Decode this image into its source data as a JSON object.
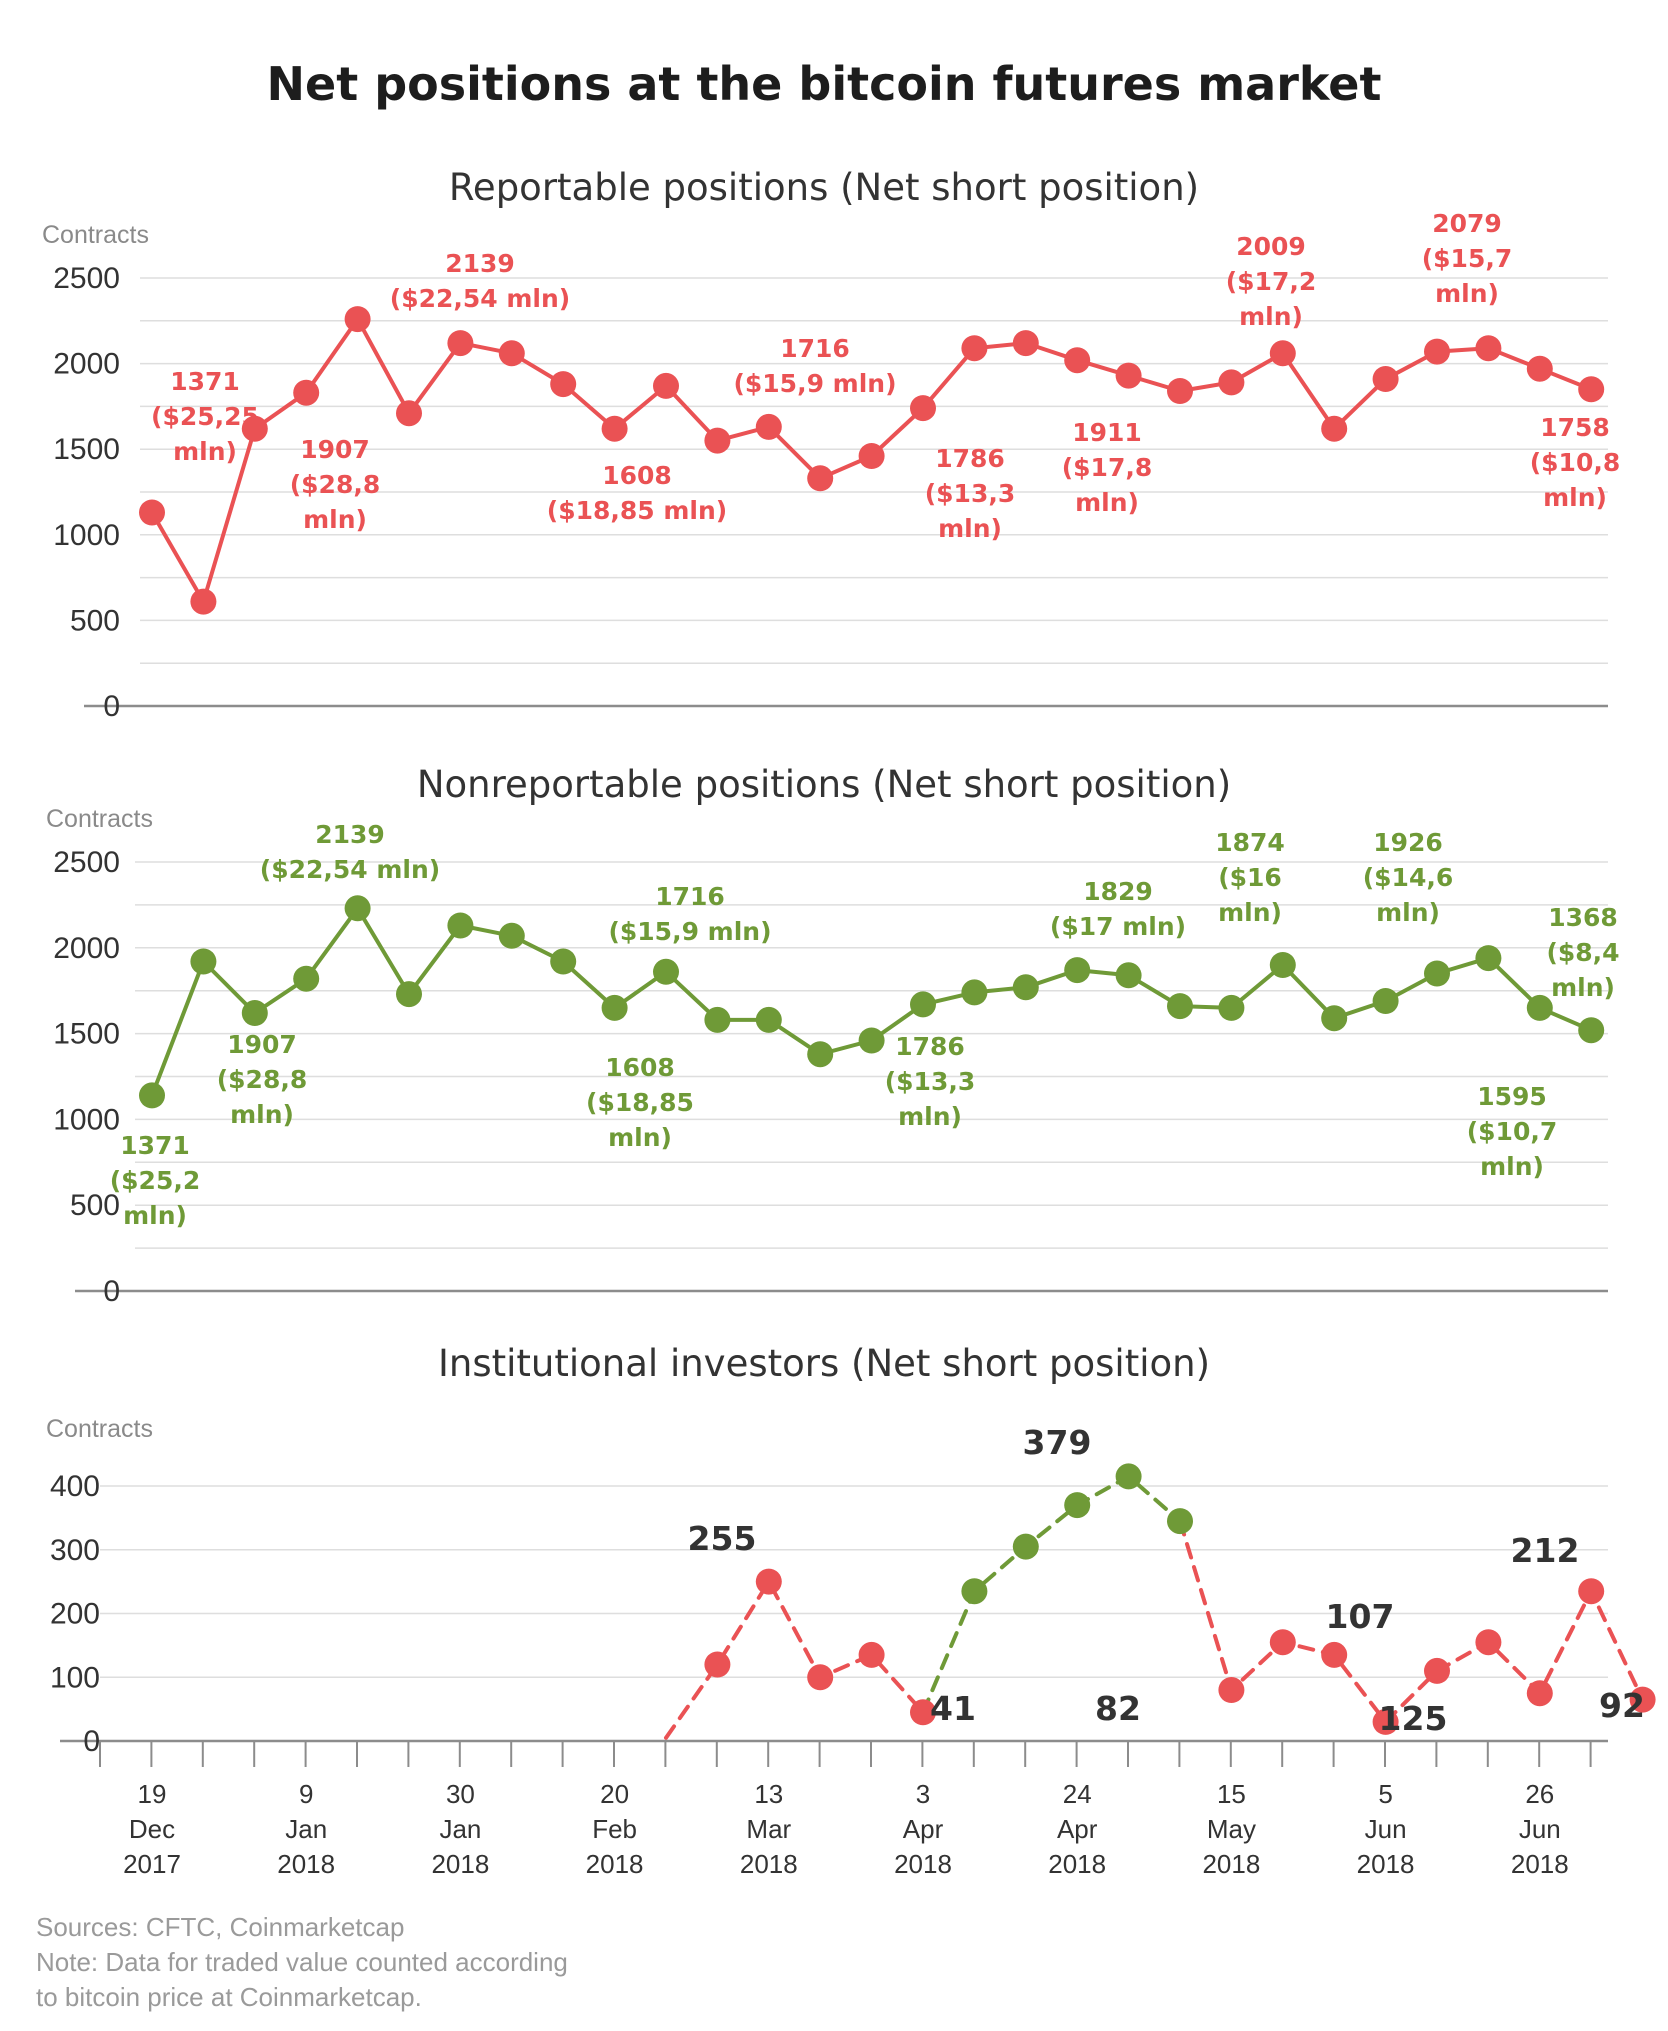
{
  "title": "Net positions at the bitcoin futures market",
  "colors": {
    "red": "#ea5254",
    "green": "#6f9a37",
    "text": "#333333",
    "muted": "#8a8a8a"
  },
  "x_ticks": [
    {
      "day": "19",
      "month": "Dec",
      "year": "2017"
    },
    {
      "day": "9",
      "month": "Jan",
      "year": "2018"
    },
    {
      "day": "30",
      "month": "Jan",
      "year": "2018"
    },
    {
      "day": "20",
      "month": "Feb",
      "year": "2018"
    },
    {
      "day": "13",
      "month": "Mar",
      "year": "2018"
    },
    {
      "day": "3",
      "month": "Apr",
      "year": "2018"
    },
    {
      "day": "24",
      "month": "Apr",
      "year": "2018"
    },
    {
      "day": "15",
      "month": "May",
      "year": "2018"
    },
    {
      "day": "5",
      "month": "Jun",
      "year": "2018"
    },
    {
      "day": "26",
      "month": "Jun",
      "year": "2018"
    }
  ],
  "footer": {
    "sources": "Sources: CFTC, Coinmarketcap",
    "note_line1": "Note: Data for traded value counted according",
    "note_line2": "to bitcoin price at Coinmarketcap."
  },
  "chart_data": [
    {
      "type": "line",
      "title": "Reportable positions (Net short position)",
      "ylabel": "Contracts",
      "ylim": [
        0,
        2500
      ],
      "yticks": [
        0,
        500,
        1000,
        1500,
        2000,
        2500
      ],
      "series": [
        {
          "color": "#ea5254",
          "style": "solid",
          "values": [
            1130,
            610,
            1620,
            1830,
            2260,
            1710,
            2120,
            2060,
            1880,
            1620,
            1870,
            1550,
            1630,
            1330,
            1460,
            1740,
            2090,
            2120,
            2020,
            1930,
            1840,
            1890,
            2060,
            1620,
            1910,
            2070,
            2090,
            1970,
            1850
          ]
        }
      ],
      "annotations": [
        {
          "lines": [
            "1371",
            "($25,25",
            "mln)"
          ]
        },
        {
          "lines": [
            "1907",
            "($28,8",
            "mln)"
          ]
        },
        {
          "lines": [
            "2139",
            "($22,54 mln)"
          ]
        },
        {
          "lines": [
            "1608",
            "($18,85 mln)"
          ]
        },
        {
          "lines": [
            "1716",
            "($15,9 mln)"
          ]
        },
        {
          "lines": [
            "1786",
            "($13,3",
            "mln)"
          ]
        },
        {
          "lines": [
            "1911",
            "($17,8",
            "mln)"
          ]
        },
        {
          "lines": [
            "2009",
            "($17,2",
            "mln)"
          ]
        },
        {
          "lines": [
            "2079",
            "($15,7",
            "mln)"
          ]
        },
        {
          "lines": [
            "1758",
            "($10,8",
            "mln)"
          ]
        }
      ]
    },
    {
      "type": "line",
      "title": "Nonreportable positions (Net short position)",
      "ylabel": "Contracts",
      "ylim": [
        0,
        2500
      ],
      "yticks": [
        0,
        500,
        1000,
        1500,
        2000,
        2500
      ],
      "series": [
        {
          "color": "#6f9a37",
          "style": "solid",
          "values": [
            1140,
            1920,
            1620,
            1820,
            2230,
            1730,
            2130,
            2070,
            1920,
            1650,
            1860,
            1580,
            1580,
            1380,
            1460,
            1670,
            1740,
            1770,
            1870,
            1840,
            1660,
            1650,
            1900,
            1590,
            1690,
            1850,
            1940,
            1650,
            1520
          ]
        }
      ],
      "annotations": [
        {
          "lines": [
            "1371",
            "($25,2",
            "mln)"
          ]
        },
        {
          "lines": [
            "1907",
            "($28,8",
            "mln)"
          ]
        },
        {
          "lines": [
            "2139",
            "($22,54 mln)"
          ]
        },
        {
          "lines": [
            "1608",
            "($18,85",
            "mln)"
          ]
        },
        {
          "lines": [
            "1716",
            "($15,9 mln)"
          ]
        },
        {
          "lines": [
            "1786",
            "($13,3",
            "mln)"
          ]
        },
        {
          "lines": [
            "1829",
            "($17 mln)"
          ]
        },
        {
          "lines": [
            "1874",
            "($16",
            "mln)"
          ]
        },
        {
          "lines": [
            "1926",
            "($14,6",
            "mln)"
          ]
        },
        {
          "lines": [
            "1595",
            "($10,7",
            "mln)"
          ]
        },
        {
          "lines": [
            "1368",
            "($8,4",
            "mln)"
          ]
        }
      ]
    },
    {
      "type": "line",
      "title": "Institutional investors (Net short position)",
      "ylabel": "Contracts",
      "ylim": [
        0,
        400
      ],
      "yticks": [
        0,
        100,
        200,
        300,
        400
      ],
      "series": [
        {
          "color": "#ea5254",
          "style": "dashed",
          "points": [
            [
              10,
              5
            ],
            [
              11,
              120
            ],
            [
              12,
              250
            ],
            [
              13,
              100
            ],
            [
              14,
              135
            ],
            [
              15,
              45
            ]
          ]
        },
        {
          "color": "#6f9a37",
          "style": "dashed",
          "points": [
            [
              15,
              45
            ],
            [
              16,
              235
            ],
            [
              17,
              305
            ],
            [
              18,
              370
            ],
            [
              19,
              415
            ],
            [
              20,
              345
            ]
          ]
        },
        {
          "color": "#ea5254",
          "style": "dashed",
          "points": [
            [
              20,
              345
            ],
            [
              21,
              80
            ],
            [
              22,
              155
            ],
            [
              23,
              135
            ],
            [
              24,
              30
            ],
            [
              25,
              110
            ],
            [
              26,
              155
            ],
            [
              27,
              75
            ],
            [
              28,
              235
            ],
            [
              29,
              65
            ]
          ]
        }
      ],
      "annotations": [
        {
          "lines": [
            "255"
          ]
        },
        {
          "lines": [
            "41"
          ]
        },
        {
          "lines": [
            "379"
          ]
        },
        {
          "lines": [
            "82"
          ]
        },
        {
          "lines": [
            "107"
          ]
        },
        {
          "lines": [
            "125"
          ]
        },
        {
          "lines": [
            "212"
          ]
        },
        {
          "lines": [
            "92"
          ]
        }
      ]
    }
  ]
}
